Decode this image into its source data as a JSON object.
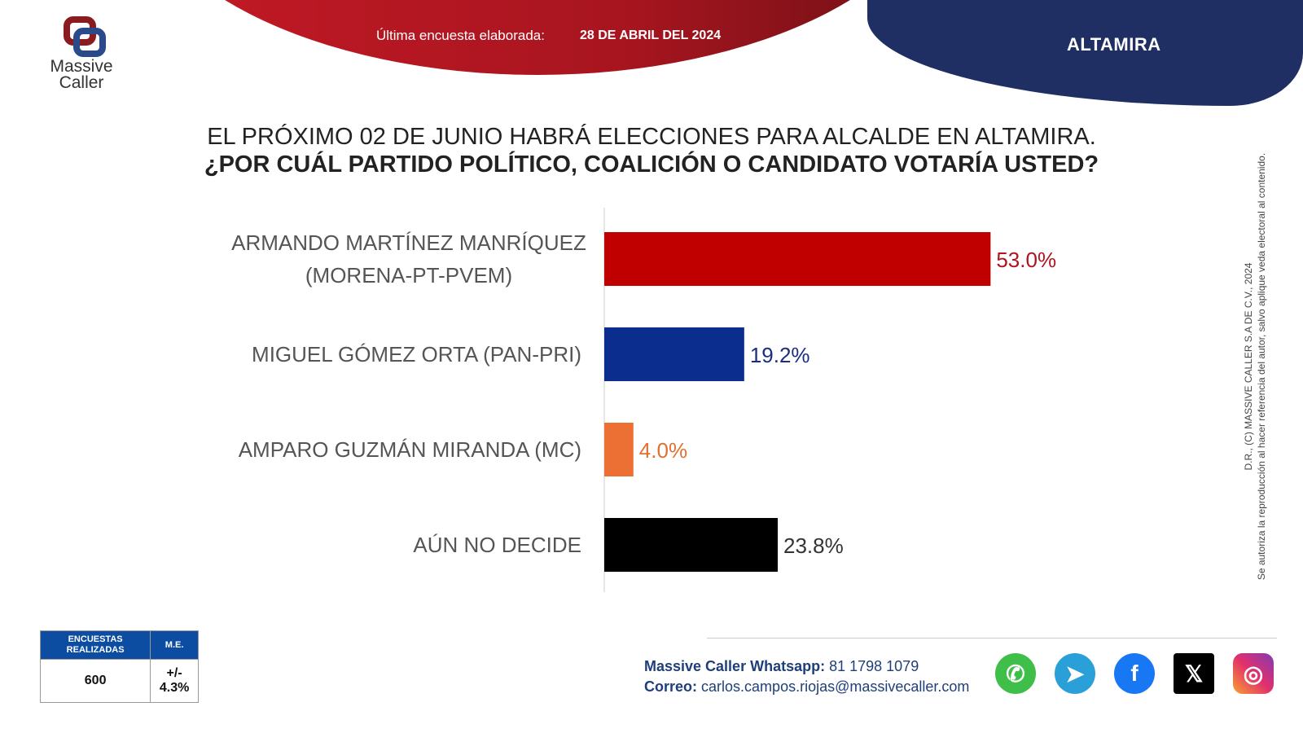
{
  "header": {
    "survey_label": "Última encuesta elaborada:",
    "survey_date": "28 DE ABRIL DEL 2024",
    "city": "ALTAMIRA"
  },
  "logo": {
    "line1": "Massive",
    "line2": "Caller"
  },
  "question": {
    "line1": "EL PRÓXIMO 02 DE JUNIO HABRÁ ELECCIONES PARA ALCALDE EN ALTAMIRA.",
    "line2": "¿POR CUÁL PARTIDO POLÍTICO, COALICIÓN O CANDIDATO VOTARÍA USTED?"
  },
  "chart_data": {
    "type": "bar",
    "orientation": "horizontal",
    "categories": [
      [
        "ARMANDO MARTÍNEZ MANRÍQUEZ",
        "(MORENA-PT-PVEM)"
      ],
      [
        "MIGUEL GÓMEZ ORTA (PAN-PRI)"
      ],
      [
        "AMPARO GUZMÁN MIRANDA (MC)"
      ],
      [
        "AÚN NO DECIDE"
      ]
    ],
    "values": [
      53.0,
      19.2,
      4.0,
      23.8
    ],
    "labels": [
      "53.0%",
      "19.2%",
      "4.0%",
      "23.8%"
    ],
    "colors": [
      "#c00000",
      "#0b2d8e",
      "#ec7034",
      "#000000"
    ],
    "label_colors": [
      "#b0141e",
      "#1a2f80",
      "#e07030",
      "#333333"
    ],
    "xlim": [
      0,
      100
    ]
  },
  "copyright": {
    "line1": "D.R., (C) MASSIVE CALLER S.A DE C.V., 2024",
    "line2": "Se autoriza la reproducción al hacer referencia del autor, salvo aplique veda electoral al contenido."
  },
  "stats": {
    "h1": "ENCUESTAS REALIZADAS",
    "h2": "M.E.",
    "v1": "600",
    "v2": "+/- 4.3%"
  },
  "contact": {
    "wa_label": "Massive Caller Whatsapp:",
    "wa": "81 1798 1079",
    "mail_label": "Correo:",
    "mail": "carlos.campos.riojas@massivecaller.com"
  },
  "social": [
    "whatsapp-icon",
    "telegram-icon",
    "facebook-icon",
    "x-icon",
    "instagram-icon"
  ]
}
